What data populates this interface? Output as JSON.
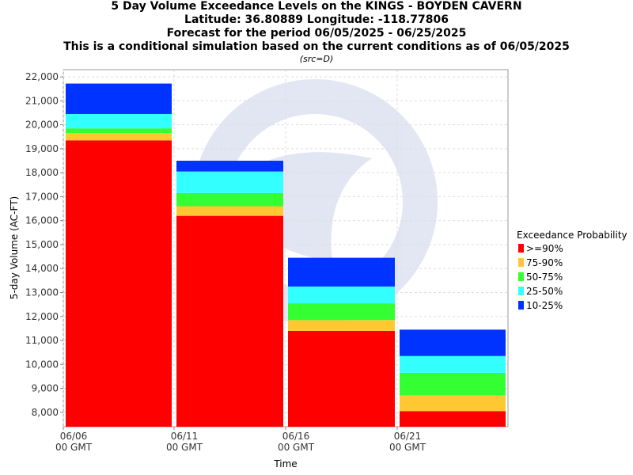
{
  "titles": {
    "line1": "5 Day Volume Exceedance Levels on the KINGS - BOYDEN CAVERN",
    "line2": "Latitude: 36.80889 Longitude: -118.77806",
    "line3": "Forecast for the period 06/05/2025 - 06/25/2025",
    "line4": "This is a conditional simulation based on the current conditions as of 06/05/2025",
    "sub": "(src=D)"
  },
  "chart_data": {
    "type": "bar",
    "stacked": true,
    "xlabel": "Time",
    "ylabel": "5-day Volume (AC-FT)",
    "ylim": [
      7400,
      22300
    ],
    "y_ticks": [
      8000,
      9000,
      10000,
      11000,
      12000,
      13000,
      14000,
      15000,
      16000,
      17000,
      18000,
      19000,
      20000,
      21000,
      22000
    ],
    "y_tick_labels": [
      "8,000",
      "9,000",
      "10,000",
      "11,000",
      "12,000",
      "13,000",
      "14,000",
      "15,000",
      "16,000",
      "17,000",
      "18,000",
      "19,000",
      "20,000",
      "21,000",
      "22,000"
    ],
    "x_ticks": [
      {
        "line1": "06/06",
        "line2": "00 GMT"
      },
      {
        "line1": "06/11",
        "line2": "00 GMT"
      },
      {
        "line1": "06/16",
        "line2": "00 GMT"
      },
      {
        "line1": "06/21",
        "line2": "00 GMT"
      }
    ],
    "legend_title": "Exceedance Probability",
    "legend_position": "right",
    "grid": true,
    "series": [
      {
        "name": ">=90%",
        "color": "#ff0000"
      },
      {
        "name": "75-90%",
        "color": "#ffc832"
      },
      {
        "name": "50-75%",
        "color": "#33ff33"
      },
      {
        "name": "25-50%",
        "color": "#33ffff"
      },
      {
        "name": "10-25%",
        "color": "#0033ff"
      }
    ],
    "periods": [
      {
        "start": "06/06",
        "end": "06/11",
        "levels": [
          19350,
          19650,
          19850,
          20450,
          21720
        ]
      },
      {
        "start": "06/11",
        "end": "06/16",
        "levels": [
          16200,
          16600,
          17150,
          18050,
          18500
        ]
      },
      {
        "start": "06/16",
        "end": "06/21",
        "levels": [
          11400,
          11850,
          12550,
          13250,
          14450
        ]
      },
      {
        "start": "06/21",
        "end": "06/26",
        "levels": [
          8050,
          8700,
          9650,
          10350,
          11450
        ]
      }
    ]
  }
}
